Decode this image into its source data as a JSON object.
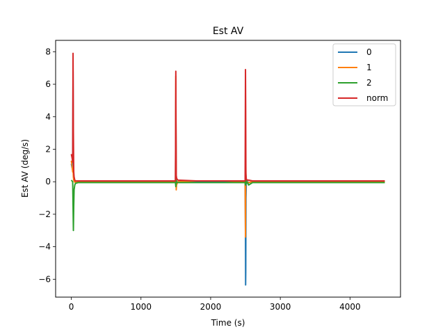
{
  "chart_data": {
    "type": "line",
    "title": "Est AV",
    "xlabel": "Time (s)",
    "ylabel": "Est AV (deg/s)",
    "xlim": [
      -225,
      4725
    ],
    "ylim": [
      -7.1,
      8.7
    ],
    "xticks": [
      0,
      1000,
      2000,
      3000,
      4000
    ],
    "yticks": [
      -6,
      -4,
      -2,
      0,
      2,
      4,
      6,
      8
    ],
    "grid": false,
    "legend_position": "top-right",
    "series": [
      {
        "name": "0",
        "color": "#1f77b4",
        "x": [
          0,
          10,
          20,
          25,
          30,
          35,
          45,
          60,
          100,
          500,
          1000,
          1495,
          1500,
          1503,
          1506,
          1512,
          1530,
          1800,
          2200,
          2495,
          2500,
          2502,
          2504,
          2507,
          2512,
          2520,
          2545,
          2600,
          3000,
          3500,
          4000,
          4500
        ],
        "y": [
          1.1,
          0.9,
          0.7,
          6.8,
          0.5,
          0.15,
          0.05,
          0.02,
          0.0,
          0.0,
          0.0,
          0.0,
          5.0,
          2.5,
          0.2,
          -0.1,
          0.0,
          0.0,
          0.0,
          0.0,
          -3.5,
          -6.35,
          -5.5,
          -1.0,
          0.0,
          0.05,
          -0.05,
          0.0,
          0.0,
          0.0,
          0.0,
          0.0
        ]
      },
      {
        "name": "1",
        "color": "#ff7f0e",
        "x": [
          0,
          10,
          20,
          25,
          30,
          35,
          45,
          60,
          100,
          500,
          1000,
          1495,
          1500,
          1503,
          1506,
          1510,
          1530,
          1800,
          2200,
          2495,
          2500,
          2503,
          2506,
          2512,
          2545,
          2600,
          3000,
          3500,
          4000,
          4500
        ],
        "y": [
          1.3,
          1.0,
          0.6,
          0.8,
          0.3,
          0.1,
          0.0,
          -0.05,
          0.0,
          0.0,
          0.0,
          0.0,
          6.5,
          3.0,
          -0.5,
          -0.2,
          0.0,
          0.05,
          0.05,
          0.0,
          -3.4,
          1.6,
          0.3,
          0.0,
          -0.05,
          0.0,
          0.0,
          0.0,
          0.0,
          0.0
        ]
      },
      {
        "name": "2",
        "color": "#2ca02c",
        "x": [
          0,
          10,
          20,
          25,
          30,
          35,
          40,
          50,
          60,
          100,
          500,
          1000,
          1495,
          1500,
          1503,
          1506,
          1512,
          1530,
          1800,
          2200,
          2495,
          2500,
          2503,
          2506,
          2512,
          2530,
          2545,
          2600,
          3000,
          3500,
          4000,
          4500
        ],
        "y": [
          0.1,
          0.05,
          0.0,
          -1.5,
          -3.0,
          -1.5,
          -0.5,
          -0.2,
          -0.1,
          -0.05,
          -0.05,
          -0.05,
          -0.05,
          -0.3,
          -0.1,
          0.1,
          -0.05,
          -0.05,
          -0.05,
          -0.05,
          -0.05,
          -0.2,
          1.3,
          0.2,
          -0.1,
          -0.05,
          -0.2,
          -0.05,
          -0.05,
          -0.05,
          -0.05,
          -0.05
        ]
      },
      {
        "name": "norm",
        "color": "#d62728",
        "x": [
          0,
          10,
          20,
          25,
          30,
          35,
          40,
          50,
          60,
          100,
          500,
          1000,
          1495,
          1500,
          1503,
          1506,
          1512,
          1530,
          1800,
          2200,
          2495,
          2500,
          2503,
          2506,
          2512,
          2530,
          2545,
          2600,
          3000,
          3500,
          4000,
          4500
        ],
        "y": [
          1.7,
          1.5,
          1.2,
          7.9,
          3.0,
          0.6,
          0.3,
          0.1,
          0.05,
          0.05,
          0.05,
          0.05,
          0.05,
          6.8,
          3.0,
          0.4,
          0.2,
          0.1,
          0.05,
          0.05,
          0.05,
          6.9,
          4.5,
          0.5,
          0.15,
          0.1,
          0.1,
          0.05,
          0.05,
          0.05,
          0.05,
          0.05
        ]
      }
    ]
  }
}
